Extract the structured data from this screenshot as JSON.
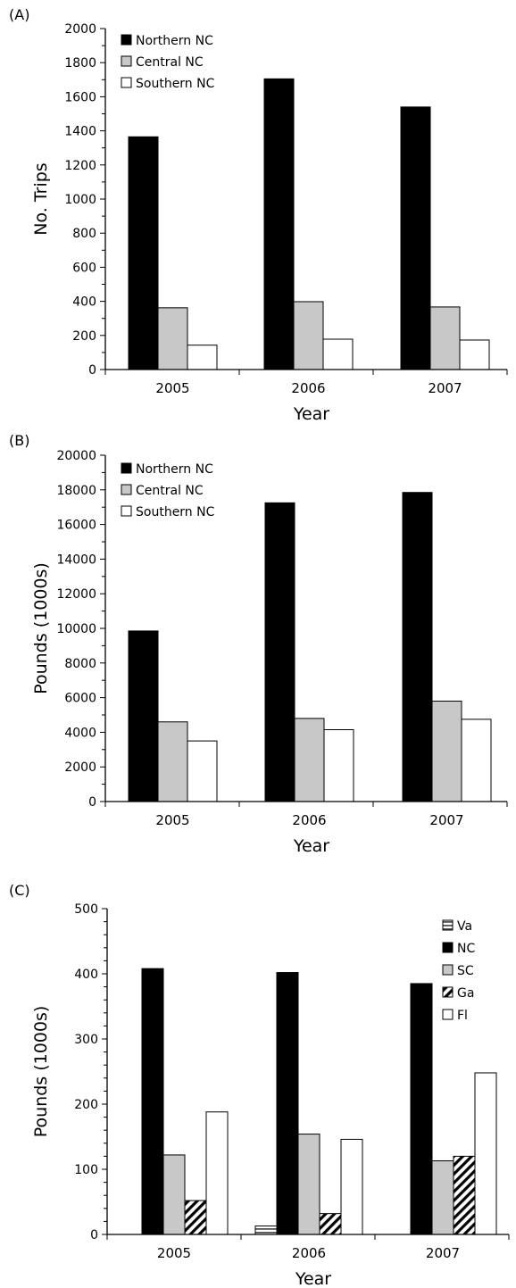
{
  "chart_data": [
    {
      "type": "bar",
      "panel_label": "(A)",
      "categories": [
        "2005",
        "2006",
        "2007"
      ],
      "series": [
        {
          "name": "Northern NC",
          "values": [
            1365,
            1705,
            1540
          ]
        },
        {
          "name": "Central NC",
          "values": [
            362,
            398,
            367
          ]
        },
        {
          "name": "Southern NC",
          "values": [
            143,
            178,
            173
          ]
        }
      ],
      "xlabel": "Year",
      "ylabel": "No. Trips",
      "ylim": [
        0,
        2000
      ],
      "yticks": [
        "0",
        "200",
        "400",
        "600",
        "800",
        "1000",
        "1200",
        "1400",
        "1600",
        "1800",
        "2000"
      ],
      "legend_position": "top-left"
    },
    {
      "type": "bar",
      "panel_label": "(B)",
      "categories": [
        "2005",
        "2006",
        "2007"
      ],
      "series": [
        {
          "name": "Northern NC",
          "values": [
            9850,
            17250,
            17850
          ]
        },
        {
          "name": "Central NC",
          "values": [
            4600,
            4800,
            5800
          ]
        },
        {
          "name": "Southern NC",
          "values": [
            3500,
            4150,
            4750
          ]
        }
      ],
      "xlabel": "Year",
      "ylabel": "Pounds (1000s)",
      "ylim": [
        0,
        20000
      ],
      "yticks": [
        "0",
        "2000",
        "4000",
        "6000",
        "8000",
        "10000",
        "12000",
        "14000",
        "16000",
        "18000",
        "20000"
      ],
      "legend_position": "top-left"
    },
    {
      "type": "bar",
      "panel_label": "(C)",
      "categories": [
        "2005",
        "2006",
        "2007"
      ],
      "series": [
        {
          "name": "Va",
          "values": [
            0,
            13,
            0
          ]
        },
        {
          "name": "NC",
          "values": [
            408,
            402,
            385
          ]
        },
        {
          "name": "SC",
          "values": [
            122,
            154,
            113
          ]
        },
        {
          "name": "Ga",
          "values": [
            52,
            32,
            120
          ]
        },
        {
          "name": "Fl",
          "values": [
            188,
            146,
            248
          ]
        }
      ],
      "xlabel": "Year",
      "ylabel": "Pounds (1000s)",
      "ylim": [
        0,
        500
      ],
      "yticks": [
        "0",
        "100",
        "200",
        "300",
        "400",
        "500"
      ],
      "legend_position": "top-right"
    }
  ],
  "colors": {
    "black": "#000000",
    "gray": "#c8c8c8",
    "white": "#ffffff",
    "hlines": "#7a7a7a"
  }
}
